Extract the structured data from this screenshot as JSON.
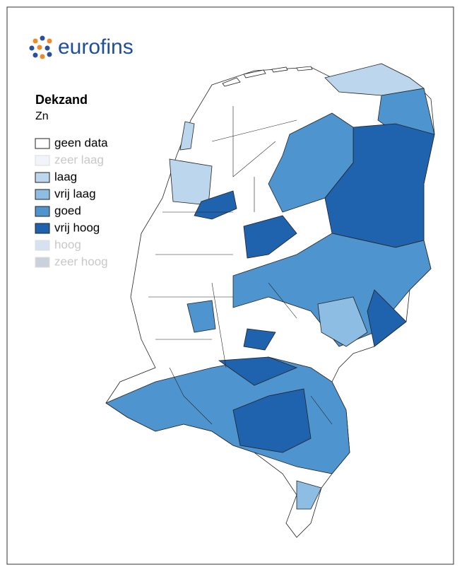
{
  "logo": "eurofins",
  "title": "Dekzand",
  "subtitle": "Zn",
  "legend": [
    {
      "label": "geen data",
      "color": "#ffffff",
      "label_color": "#000000"
    },
    {
      "label": "zeer laag",
      "color": "#f1f5fb",
      "label_color": "#c8c8c8"
    },
    {
      "label": "laag",
      "color": "#bcd6ee",
      "label_color": "#000000"
    },
    {
      "label": "vrij laag",
      "color": "#8dbde3",
      "label_color": "#000000"
    },
    {
      "label": "goed",
      "color": "#4e94cf",
      "label_color": "#000000"
    },
    {
      "label": "vrij hoog",
      "color": "#1f62ad",
      "label_color": "#000000"
    },
    {
      "label": "hoog",
      "color": "#d6e2f2",
      "label_color": "#c8c8c8"
    },
    {
      "label": "zeer hoog",
      "color": "#c9d1dc",
      "label_color": "#c8c8c8"
    }
  ]
}
